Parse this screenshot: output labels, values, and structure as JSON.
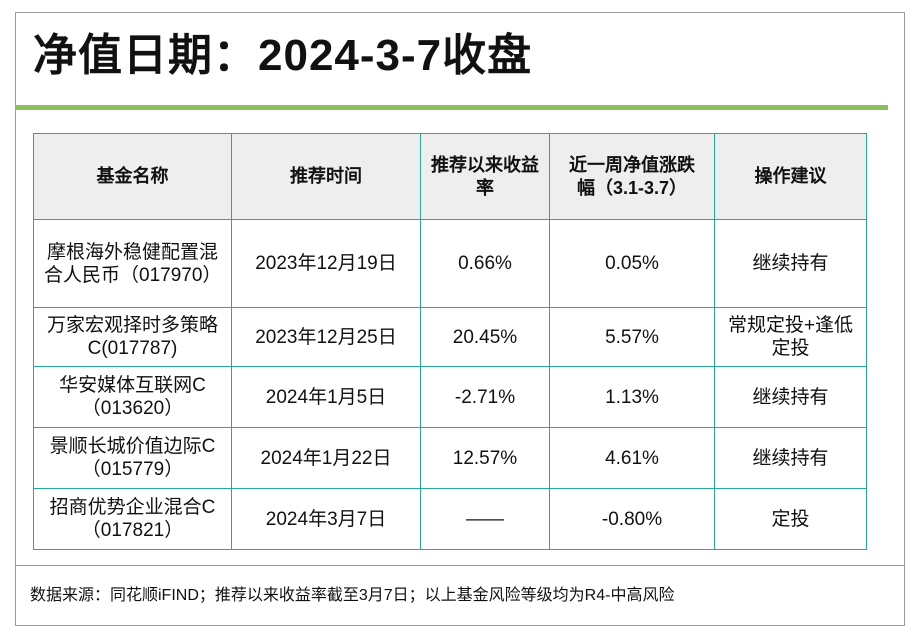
{
  "title": "净值日期：2024-3-7收盘",
  "table": {
    "headers": [
      "基金名称",
      "推荐时间",
      "推荐以来收益率",
      "近一周净值涨跌幅（3.1-3.7）",
      "操作建议"
    ],
    "rows": [
      [
        "摩根海外稳健配置混合人民币（017970）",
        "2023年12月19日",
        "0.66%",
        "0.05%",
        "继续持有"
      ],
      [
        "万家宏观择时多策略C(017787)",
        "2023年12月25日",
        "20.45%",
        "5.57%",
        "常规定投+逢低定投"
      ],
      [
        "华安媒体互联网C（013620）",
        "2024年1月5日",
        "-2.71%",
        "1.13%",
        "继续持有"
      ],
      [
        "景顺长城价值边际C（015779）",
        "2024年1月22日",
        "12.57%",
        "4.61%",
        "继续持有"
      ],
      [
        "招商优势企业混合C（017821）",
        "2024年3月7日",
        "——",
        "-0.80%",
        "定投"
      ]
    ]
  },
  "footer": "数据来源：同花顺iFIND；推荐以来收益率截至3月7日；以上基金风险等级均为R4-中高风险",
  "colors": {
    "accent": "#8cc05a",
    "table_border": "#2aa69a"
  }
}
